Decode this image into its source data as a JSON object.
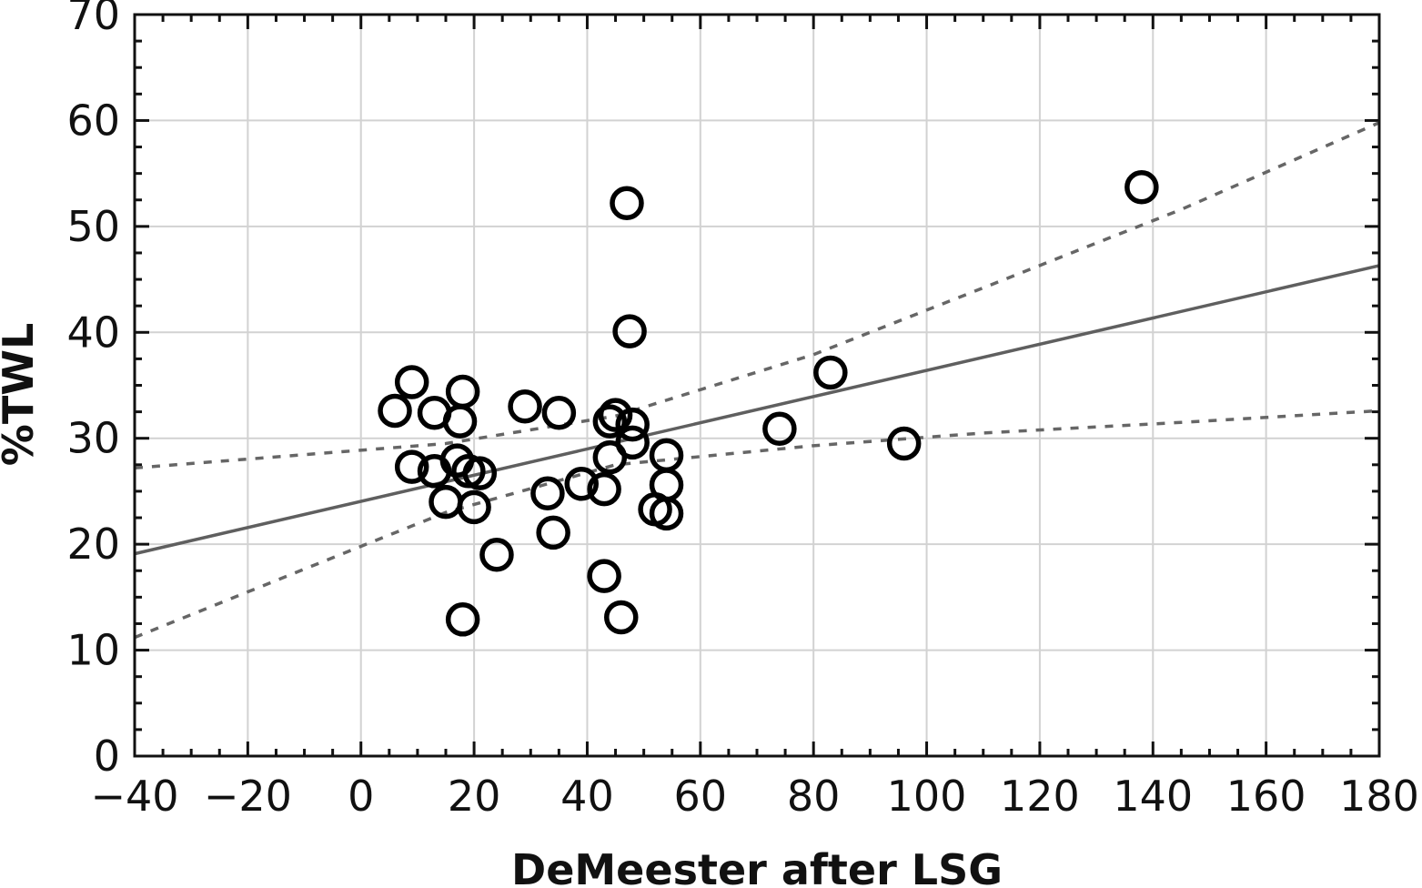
{
  "chart_data": {
    "type": "scatter",
    "title": "",
    "xlabel": "DeMeester after LSG",
    "ylabel": "%TWL",
    "xlim": [
      -40,
      180
    ],
    "ylim": [
      0,
      70
    ],
    "xticks": [
      -40,
      -20,
      0,
      20,
      40,
      60,
      80,
      100,
      120,
      140,
      160,
      180
    ],
    "yticks": [
      0,
      10,
      20,
      30,
      40,
      50,
      60,
      70
    ],
    "x_tick_labels": [
      "−40",
      "−20",
      "0",
      "20",
      "40",
      "60",
      "80",
      "100",
      "120",
      "140",
      "160",
      "180"
    ],
    "y_tick_labels": [
      "0",
      "10",
      "20",
      "30",
      "40",
      "50",
      "60",
      "70"
    ],
    "grid": true,
    "series": [
      {
        "points": [
          {
            "x": 6,
            "y": 32.6
          },
          {
            "x": 9,
            "y": 35.3
          },
          {
            "x": 9,
            "y": 27.3
          },
          {
            "x": 13,
            "y": 26.9
          },
          {
            "x": 13,
            "y": 32.4
          },
          {
            "x": 15,
            "y": 24.0
          },
          {
            "x": 17,
            "y": 27.9
          },
          {
            "x": 17.5,
            "y": 31.6
          },
          {
            "x": 18,
            "y": 34.4
          },
          {
            "x": 18,
            "y": 12.9
          },
          {
            "x": 19,
            "y": 26.9
          },
          {
            "x": 20,
            "y": 23.5
          },
          {
            "x": 21,
            "y": 26.7
          },
          {
            "x": 24,
            "y": 19.0
          },
          {
            "x": 29,
            "y": 33.0
          },
          {
            "x": 33,
            "y": 24.8
          },
          {
            "x": 34,
            "y": 21.1
          },
          {
            "x": 35,
            "y": 32.4
          },
          {
            "x": 39,
            "y": 25.7
          },
          {
            "x": 43,
            "y": 25.2
          },
          {
            "x": 43,
            "y": 17.0
          },
          {
            "x": 44,
            "y": 31.6
          },
          {
            "x": 44,
            "y": 28.2
          },
          {
            "x": 45,
            "y": 32.2
          },
          {
            "x": 46,
            "y": 13.1
          },
          {
            "x": 47,
            "y": 52.2
          },
          {
            "x": 47.5,
            "y": 40.1
          },
          {
            "x": 48,
            "y": 31.3
          },
          {
            "x": 48,
            "y": 29.6
          },
          {
            "x": 52,
            "y": 23.3
          },
          {
            "x": 54,
            "y": 28.4
          },
          {
            "x": 54,
            "y": 25.6
          },
          {
            "x": 54,
            "y": 22.9
          },
          {
            "x": 74,
            "y": 30.9
          },
          {
            "x": 83,
            "y": 36.2
          },
          {
            "x": 96,
            "y": 29.5
          },
          {
            "x": 138,
            "y": 53.7
          }
        ]
      }
    ],
    "regression_line": {
      "x": [
        -40,
        180
      ],
      "y": [
        19.1,
        46.3
      ]
    },
    "confidence_band": {
      "upper": {
        "x": [
          -40,
          15,
          45,
          80,
          110,
          145,
          180
        ],
        "y": [
          27.2,
          29.5,
          32.1,
          37.9,
          44.2,
          51.6,
          59.8
        ]
      },
      "lower": {
        "x": [
          -40,
          0,
          15,
          45,
          80,
          110,
          145,
          180
        ],
        "y": [
          11.2,
          19.8,
          23.0,
          27.5,
          29.3,
          30.5,
          31.5,
          32.6
        ]
      }
    }
  }
}
